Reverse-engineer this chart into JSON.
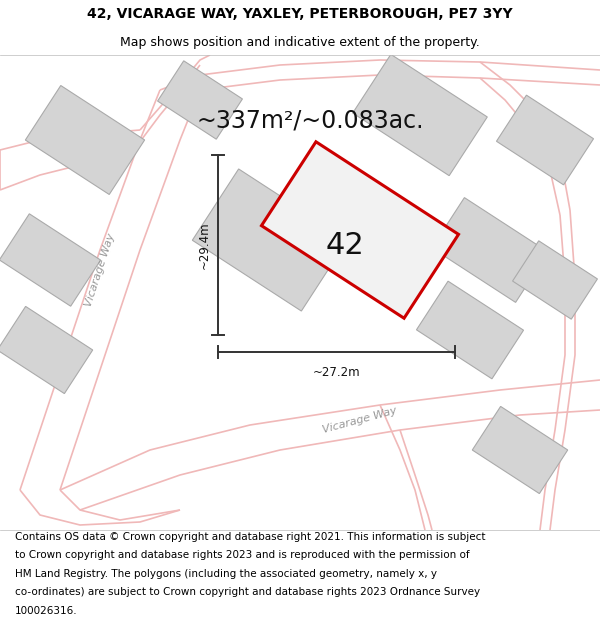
{
  "title_line1": "42, VICARAGE WAY, YAXLEY, PETERBOROUGH, PE7 3YY",
  "title_line2": "Map shows position and indicative extent of the property.",
  "area_text": "~337m²/~0.083ac.",
  "label_42": "42",
  "dim_height": "~29.4m",
  "dim_width": "~27.2m",
  "footer_lines": [
    "Contains OS data © Crown copyright and database right 2021. This information is subject",
    "to Crown copyright and database rights 2023 and is reproduced with the permission of",
    "HM Land Registry. The polygons (including the associated geometry, namely x, y",
    "co-ordinates) are subject to Crown copyright and database rights 2023 Ordnance Survey",
    "100026316."
  ],
  "map_bg": "#f2f2f2",
  "road_color": "#f0b8b8",
  "road_fill": "#f2f2f2",
  "building_color": "#d4d4d4",
  "building_edge": "#aaaaaa",
  "plot_outline_color": "#cc0000",
  "plot_fill": "#f2f2f2",
  "dim_line_color": "#333333",
  "road_label_color": "#999999",
  "title_fontsize": 10,
  "subtitle_fontsize": 9,
  "area_fontsize": 17,
  "label_fontsize": 22,
  "footer_fontsize": 7.5,
  "dim_fontsize": 8.5
}
